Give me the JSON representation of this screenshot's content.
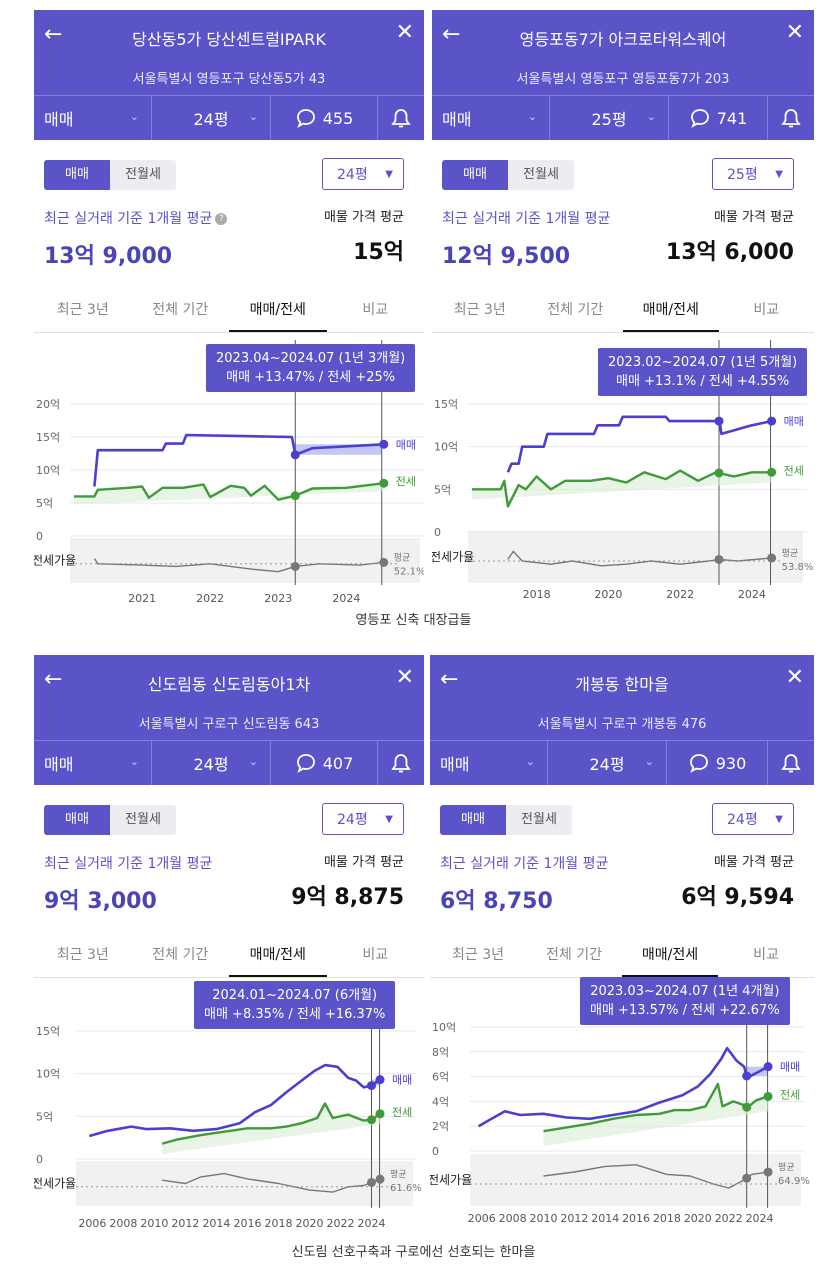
{
  "common": {
    "sale_tab": "매매",
    "rent_tab": "전월세",
    "recent_label": "최근 실거래 기준 1개월 평균",
    "avg_label": "매물 가격 평균",
    "tabs": [
      "최근 3년",
      "전체 기간",
      "매매/전세",
      "비교"
    ],
    "series_sale": "매매",
    "series_rent": "전세",
    "ratio_label": "전세가율",
    "ratio_avg_label": "평균",
    "colors": {
      "brand": "#5a54c8",
      "sale": "#4a3fd0",
      "rent": "#3f9a3a",
      "ratio": "#777777",
      "gap_up": "#b9bdf5",
      "gap_down": "#f2b8a8"
    }
  },
  "captions": [
    "영등포 신축 대장급들",
    "신도림 선호구축과 구로에선 선호되는 한마을"
  ],
  "panels": [
    {
      "title": "당산동5가 당산센트럴IPARK",
      "address": "서울특별시 영등포구 당산동5가 43",
      "deal_type": "매매",
      "size": "24평",
      "comments": "455",
      "size_button": "24평",
      "recent_value": "13억 9,000",
      "avg_value": "15억",
      "tooltip_line1": "2023.04~2024.07 (1년 3개월)",
      "tooltip_line2": "매매 +13.47%  /  전세 +25%",
      "ratio_avg": "52.1%",
      "chart_data": {
        "type": "line",
        "x_ticks": [
          "2021",
          "2022",
          "2023",
          "2024"
        ],
        "y_ticks": [
          "20억",
          "15억",
          "10억",
          "5억",
          "0"
        ],
        "ylim": [
          0,
          20
        ],
        "xlim": [
          2020.0,
          2024.7
        ],
        "series": [
          {
            "name": "매매",
            "points": [
              [
                2020.3,
                7.5
              ],
              [
                2020.35,
                13
              ],
              [
                2021.3,
                13
              ],
              [
                2021.35,
                14
              ],
              [
                2021.6,
                14
              ],
              [
                2021.65,
                15.3
              ],
              [
                2023.2,
                15
              ],
              [
                2023.25,
                12.3
              ],
              [
                2023.5,
                13.3
              ],
              [
                2024.55,
                13.9
              ]
            ]
          },
          {
            "name": "전세",
            "points": [
              [
                2020.0,
                6
              ],
              [
                2020.3,
                6
              ],
              [
                2020.35,
                7
              ],
              [
                2020.8,
                7.3
              ],
              [
                2021.0,
                7.5
              ],
              [
                2021.1,
                5.8
              ],
              [
                2021.3,
                7.3
              ],
              [
                2021.6,
                7.3
              ],
              [
                2021.9,
                7.8
              ],
              [
                2022.0,
                5.9
              ],
              [
                2022.3,
                7.6
              ],
              [
                2022.5,
                7.3
              ],
              [
                2022.6,
                6.1
              ],
              [
                2022.8,
                7.6
              ],
              [
                2023.0,
                5.5
              ],
              [
                2023.25,
                6.1
              ],
              [
                2023.5,
                7.2
              ],
              [
                2024.0,
                7.3
              ],
              [
                2024.55,
                8
              ]
            ]
          },
          {
            "name": "전세가율",
            "points": [
              [
                2020.3,
                58
              ],
              [
                2020.35,
                50
              ],
              [
                2021.0,
                48
              ],
              [
                2021.5,
                46
              ],
              [
                2022.0,
                50
              ],
              [
                2022.6,
                42
              ],
              [
                2023.0,
                38
              ],
              [
                2023.25,
                46
              ],
              [
                2023.6,
                50
              ],
              [
                2024.2,
                48
              ],
              [
                2024.55,
                52.1
              ]
            ]
          }
        ],
        "highlight_range": [
          "2023.04",
          "2024.07"
        ]
      }
    },
    {
      "title": "영등포동7가 아크로타워스퀘어",
      "address": "서울특별시 영등포구 영등포동7가 203",
      "deal_type": "매매",
      "size": "25평",
      "comments": "741",
      "size_button": "25평",
      "recent_value": "12억 9,500",
      "avg_value": "13억 6,000",
      "tooltip_line1": "2023.02~2024.07 (1년 5개월)",
      "tooltip_line2": "매매 +13.1%  /  전세 +4.55%",
      "ratio_avg": "53.8%",
      "chart_data": {
        "type": "line",
        "x_ticks": [
          "2018",
          "2020",
          "2022",
          "2024"
        ],
        "y_ticks": [
          "15억",
          "10억",
          "5억",
          "0"
        ],
        "ylim": [
          0,
          15
        ],
        "xlim": [
          2016.2,
          2024.7
        ],
        "series": [
          {
            "name": "매매",
            "points": [
              [
                2017.2,
                7
              ],
              [
                2017.3,
                8
              ],
              [
                2017.5,
                8
              ],
              [
                2017.6,
                10
              ],
              [
                2018.2,
                10
              ],
              [
                2018.3,
                11.5
              ],
              [
                2019.6,
                11.5
              ],
              [
                2019.7,
                12.5
              ],
              [
                2020.3,
                12.5
              ],
              [
                2020.4,
                13.5
              ],
              [
                2021.6,
                13.5
              ],
              [
                2021.7,
                13
              ],
              [
                2023.1,
                13
              ],
              [
                2023.15,
                11.5
              ],
              [
                2024.0,
                12.5
              ],
              [
                2024.55,
                13
              ]
            ]
          },
          {
            "name": "전세",
            "points": [
              [
                2016.2,
                5
              ],
              [
                2017.0,
                5
              ],
              [
                2017.1,
                6
              ],
              [
                2017.2,
                3
              ],
              [
                2017.5,
                5.5
              ],
              [
                2017.7,
                5
              ],
              [
                2018.0,
                6.5
              ],
              [
                2018.4,
                5
              ],
              [
                2018.8,
                6
              ],
              [
                2019.5,
                6
              ],
              [
                2020.0,
                6.3
              ],
              [
                2020.5,
                5.8
              ],
              [
                2021.0,
                7
              ],
              [
                2021.6,
                6.2
              ],
              [
                2022.0,
                7.2
              ],
              [
                2022.5,
                6
              ],
              [
                2023.0,
                7
              ],
              [
                2023.5,
                6.5
              ],
              [
                2024.0,
                7
              ],
              [
                2024.55,
                7
              ]
            ]
          },
          {
            "name": "전세가율",
            "points": [
              [
                2017.2,
                52
              ],
              [
                2017.35,
                62
              ],
              [
                2017.6,
                50
              ],
              [
                2018.4,
                46
              ],
              [
                2019.0,
                50
              ],
              [
                2019.8,
                44
              ],
              [
                2020.5,
                46
              ],
              [
                2021.2,
                50
              ],
              [
                2022.0,
                46
              ],
              [
                2022.8,
                50
              ],
              [
                2023.1,
                52
              ],
              [
                2023.6,
                50
              ],
              [
                2024.55,
                53.8
              ]
            ]
          }
        ],
        "highlight_range": [
          "2023.02",
          "2024.07"
        ]
      }
    },
    {
      "title": "신도림동 신도림동아1차",
      "address": "서울특별시 구로구 신도림동 643",
      "deal_type": "매매",
      "size": "24평",
      "comments": "407",
      "size_button": "24평",
      "recent_value": "9억 3,000",
      "avg_value": "9억 8,875",
      "tooltip_line1": "2024.01~2024.07 (6개월)",
      "tooltip_line2": "매매 +8.35%  /  전세 +16.37%",
      "ratio_avg": "61.6%",
      "chart_data": {
        "type": "line",
        "x_ticks": [
          "2006",
          "2008",
          "2010",
          "2012",
          "2014",
          "2016",
          "2018",
          "2020",
          "2022",
          "2024"
        ],
        "y_ticks": [
          "15억",
          "10억",
          "5억",
          "0"
        ],
        "ylim": [
          0,
          15
        ],
        "xlim": [
          2005.2,
          2025.0
        ],
        "series": [
          {
            "name": "매매",
            "points": [
              [
                2005.8,
                2.7
              ],
              [
                2007.0,
                3.3
              ],
              [
                2008.5,
                3.8
              ],
              [
                2009.5,
                3.5
              ],
              [
                2011.0,
                3.6
              ],
              [
                2012.5,
                3.3
              ],
              [
                2014.0,
                3.5
              ],
              [
                2015.5,
                4.2
              ],
              [
                2016.5,
                5.5
              ],
              [
                2017.5,
                6.3
              ],
              [
                2018.5,
                7.8
              ],
              [
                2019.5,
                9.2
              ],
              [
                2020.3,
                10.3
              ],
              [
                2021.0,
                11.0
              ],
              [
                2021.8,
                10.8
              ],
              [
                2022.5,
                9.5
              ],
              [
                2023.0,
                9.2
              ],
              [
                2023.5,
                8.4
              ],
              [
                2024.0,
                8.6
              ],
              [
                2024.55,
                9.3
              ]
            ]
          },
          {
            "name": "전세",
            "points": [
              [
                2010.5,
                1.8
              ],
              [
                2011.5,
                2.3
              ],
              [
                2013.0,
                2.8
              ],
              [
                2014.5,
                3.2
              ],
              [
                2016.0,
                3.6
              ],
              [
                2017.5,
                3.6
              ],
              [
                2018.5,
                3.8
              ],
              [
                2019.5,
                4.2
              ],
              [
                2020.5,
                4.8
              ],
              [
                2021.0,
                6.5
              ],
              [
                2021.5,
                4.8
              ],
              [
                2022.5,
                5.2
              ],
              [
                2023.5,
                4.5
              ],
              [
                2024.0,
                4.6
              ],
              [
                2024.55,
                5.3
              ]
            ]
          },
          {
            "name": "전세가율",
            "points": [
              [
                2010.5,
                60
              ],
              [
                2012.0,
                55
              ],
              [
                2013.0,
                65
              ],
              [
                2014.5,
                70
              ],
              [
                2016.0,
                62
              ],
              [
                2018.0,
                55
              ],
              [
                2020.0,
                45
              ],
              [
                2021.5,
                42
              ],
              [
                2022.5,
                50
              ],
              [
                2023.5,
                52
              ],
              [
                2024.55,
                61.6
              ]
            ]
          }
        ],
        "highlight_range": [
          "2024.01",
          "2024.07"
        ]
      }
    },
    {
      "title": "개봉동 한마을",
      "address": "서울특별시 구로구 개봉동 476",
      "deal_type": "매매",
      "size": "24평",
      "comments": "930",
      "size_button": "24평",
      "recent_value": "6억 8,750",
      "avg_value": "6억 9,594",
      "tooltip_line1": "2023.03~2024.07 (1년 4개월)",
      "tooltip_line2": "매매 +13.57%  /  전세 +22.67%",
      "ratio_avg": "64.9%",
      "chart_data": {
        "type": "line",
        "x_ticks": [
          "2006",
          "2008",
          "2010",
          "2012",
          "2014",
          "2016",
          "2018",
          "2020",
          "2022",
          "2024"
        ],
        "y_ticks": [
          "10억",
          "8억",
          "6억",
          "4억",
          "2억",
          "0"
        ],
        "ylim": [
          0,
          10
        ],
        "xlim": [
          2005.5,
          2025.0
        ],
        "series": [
          {
            "name": "매매",
            "points": [
              [
                2005.8,
                2
              ],
              [
                2006.5,
                2.5
              ],
              [
                2007.5,
                3.2
              ],
              [
                2008.5,
                2.9
              ],
              [
                2010.0,
                3.0
              ],
              [
                2011.5,
                2.7
              ],
              [
                2013.0,
                2.6
              ],
              [
                2014.5,
                2.9
              ],
              [
                2016.0,
                3.2
              ],
              [
                2017.5,
                3.9
              ],
              [
                2019.0,
                4.5
              ],
              [
                2020.0,
                5.2
              ],
              [
                2020.8,
                6.2
              ],
              [
                2021.5,
                7.4
              ],
              [
                2021.9,
                8.3
              ],
              [
                2022.5,
                7.3
              ],
              [
                2023.0,
                6.8
              ],
              [
                2023.2,
                5.9
              ],
              [
                2023.8,
                6.3
              ],
              [
                2024.55,
                6.8
              ]
            ]
          },
          {
            "name": "전세",
            "points": [
              [
                2010.0,
                1.6
              ],
              [
                2011.5,
                1.9
              ],
              [
                2013.0,
                2.2
              ],
              [
                2014.5,
                2.6
              ],
              [
                2016.0,
                2.9
              ],
              [
                2017.5,
                3.0
              ],
              [
                2018.5,
                3.3
              ],
              [
                2019.5,
                3.3
              ],
              [
                2020.5,
                3.6
              ],
              [
                2021.3,
                5.4
              ],
              [
                2021.6,
                3.6
              ],
              [
                2022.3,
                4.0
              ],
              [
                2023.0,
                3.7
              ],
              [
                2023.2,
                3.5
              ],
              [
                2023.8,
                4.1
              ],
              [
                2024.55,
                4.4
              ]
            ]
          },
          {
            "name": "전세가율",
            "points": [
              [
                2010.0,
                60
              ],
              [
                2012.0,
                65
              ],
              [
                2014.0,
                72
              ],
              [
                2016.0,
                74
              ],
              [
                2018.0,
                62
              ],
              [
                2019.5,
                60
              ],
              [
                2021.0,
                50
              ],
              [
                2022.0,
                45
              ],
              [
                2023.0,
                55
              ],
              [
                2023.5,
                62
              ],
              [
                2024.55,
                64.9
              ]
            ]
          }
        ],
        "highlight_range": [
          "2023.03",
          "2024.07"
        ]
      }
    }
  ]
}
